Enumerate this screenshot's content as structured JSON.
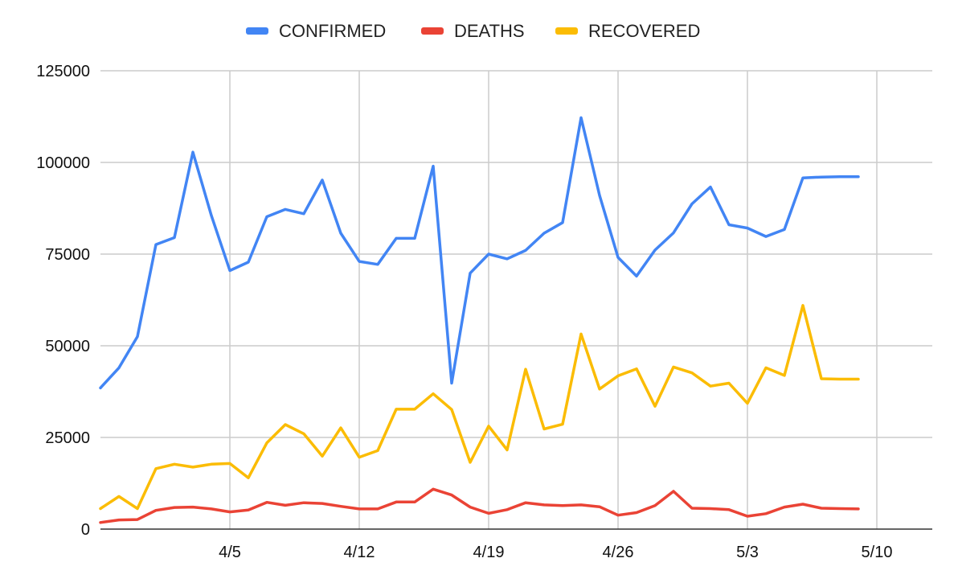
{
  "chart_data": {
    "type": "line",
    "title": "",
    "xlabel": "",
    "ylabel": "",
    "ylim": [
      0,
      125000
    ],
    "y_ticks": [
      0,
      25000,
      50000,
      75000,
      100000,
      125000
    ],
    "y_tick_labels": [
      "0",
      "25000",
      "50000",
      "75000",
      "100000",
      "125000"
    ],
    "x_range": [
      "3/29",
      "5/13"
    ],
    "x_ticks": [
      "4/5",
      "4/12",
      "4/19",
      "4/26",
      "5/3",
      "5/10"
    ],
    "grid": true,
    "legend_position": "top",
    "x": [
      "3/29",
      "3/30",
      "3/31",
      "4/1",
      "4/2",
      "4/3",
      "4/4",
      "4/5",
      "4/6",
      "4/7",
      "4/8",
      "4/9",
      "4/10",
      "4/11",
      "4/12",
      "4/13",
      "4/14",
      "4/15",
      "4/16",
      "4/17",
      "4/18",
      "4/19",
      "4/20",
      "4/21",
      "4/22",
      "4/23",
      "4/24",
      "4/25",
      "4/26",
      "4/27",
      "4/28",
      "4/29",
      "4/30",
      "5/1",
      "5/2",
      "5/3",
      "5/4",
      "5/5",
      "5/6",
      "5/7",
      "5/8",
      "5/9"
    ],
    "series": [
      {
        "name": "CONFIRMED",
        "color": "#4285f4",
        "values": [
          38500,
          44000,
          52500,
          77600,
          79500,
          102800,
          85500,
          70500,
          72800,
          85200,
          87200,
          86000,
          95200,
          80700,
          73000,
          72200,
          79300,
          79300,
          99000,
          39800,
          69800,
          75000,
          73700,
          76000,
          80700,
          83600,
          112200,
          91000,
          74100,
          69000,
          76100,
          80800,
          88700,
          93300,
          83000,
          82100,
          79800,
          81700,
          95800,
          96000,
          96100,
          96100
        ]
      },
      {
        "name": "DEATHS",
        "color": "#ea4335",
        "values": [
          1800,
          2500,
          2600,
          5100,
          5900,
          6000,
          5500,
          4700,
          5200,
          7300,
          6500,
          7200,
          7000,
          6200,
          5500,
          5500,
          7400,
          7400,
          10900,
          9300,
          6000,
          4300,
          5300,
          7200,
          6600,
          6400,
          6600,
          6100,
          3800,
          4500,
          6400,
          10300,
          5700,
          5600,
          5300,
          3500,
          4200,
          6000,
          6800,
          5700,
          5600,
          5500
        ]
      },
      {
        "name": "RECOVERED",
        "color": "#fbbc04",
        "values": [
          5600,
          8900,
          5600,
          16500,
          17700,
          16900,
          17700,
          17900,
          14000,
          23500,
          28500,
          26000,
          19900,
          27600,
          19600,
          21400,
          32700,
          32700,
          36900,
          32600,
          18200,
          28100,
          21600,
          43600,
          27300,
          28600,
          53200,
          38200,
          41800,
          43700,
          33500,
          44200,
          42600,
          39000,
          39800,
          34300,
          44000,
          41900,
          61000,
          41000,
          40900,
          40900
        ]
      }
    ]
  }
}
